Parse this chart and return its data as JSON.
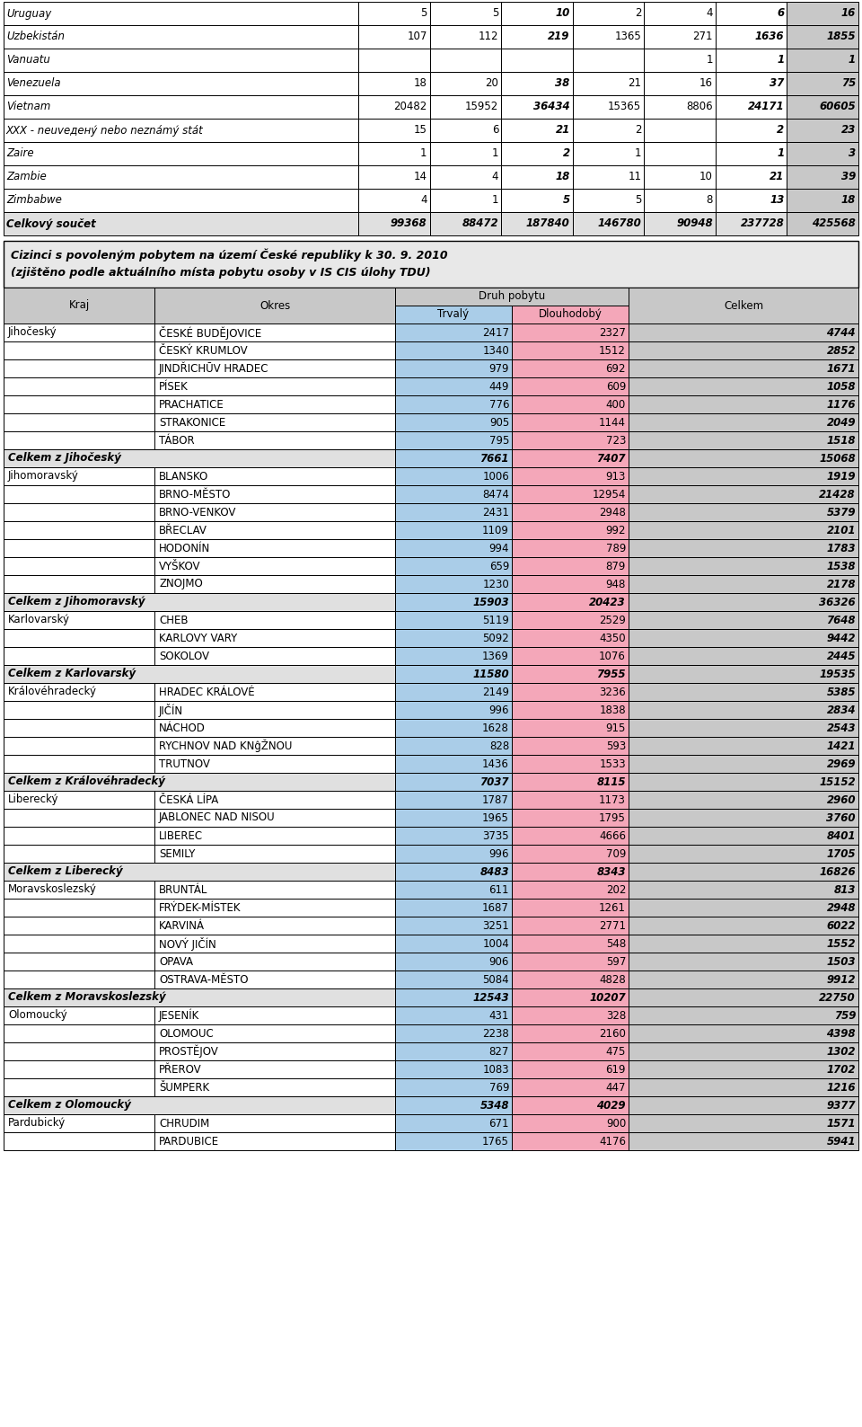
{
  "top_rows": [
    {
      "label": "Uruguay",
      "c1": "5",
      "c2": "5",
      "c3": "10",
      "c4": "2",
      "c5": "4",
      "c6": "6",
      "c7": "16"
    },
    {
      "label": "Uzbekistán",
      "c1": "107",
      "c2": "112",
      "c3": "219",
      "c4": "1365",
      "c5": "271",
      "c6": "1636",
      "c7": "1855"
    },
    {
      "label": "Vanuatu",
      "c1": "",
      "c2": "",
      "c3": "",
      "c4": "",
      "c5": "1",
      "c6": "1",
      "c7": "1"
    },
    {
      "label": "Venezuela",
      "c1": "18",
      "c2": "20",
      "c3": "38",
      "c4": "21",
      "c5": "16",
      "c6": "37",
      "c7": "75"
    },
    {
      "label": "Vietnam",
      "c1": "20482",
      "c2": "15952",
      "c3": "36434",
      "c4": "15365",
      "c5": "8806",
      "c6": "24171",
      "c7": "60605"
    },
    {
      "label": "XXX - neuveденý nebo neznámý stát",
      "c1": "15",
      "c2": "6",
      "c3": "21",
      "c4": "2",
      "c5": "",
      "c6": "2",
      "c7": "23"
    },
    {
      "label": "Zaire",
      "c1": "1",
      "c2": "1",
      "c3": "2",
      "c4": "1",
      "c5": "",
      "c6": "1",
      "c7": "3"
    },
    {
      "label": "Zambie",
      "c1": "14",
      "c2": "4",
      "c3": "18",
      "c4": "11",
      "c5": "10",
      "c6": "21",
      "c7": "39"
    },
    {
      "label": "Zimbabwe",
      "c1": "4",
      "c2": "1",
      "c3": "5",
      "c4": "5",
      "c5": "8",
      "c6": "13",
      "c7": "18"
    }
  ],
  "total_row": {
    "label": "Celkový součet",
    "c1": "99368",
    "c2": "88472",
    "c3": "187840",
    "c4": "146780",
    "c5": "90948",
    "c6": "237728",
    "c7": "425568"
  },
  "subtitle1": "Cizinci s povoleným pobytem na území České republiky k 30. 9. 2010",
  "subtitle2": "(zjištěno podle aktuálního místa pobytu osoby v IS CIS úlohy TDU)",
  "table_rows": [
    {
      "kraj": "Jihočeský",
      "okres": "ČESKÉ BUDĚJOVICE",
      "trvaly": "2417",
      "dlouhodoby": "2327",
      "celkem": "4744",
      "is_total": false
    },
    {
      "kraj": "",
      "okres": "ČESKÝ KRUMLOV",
      "trvaly": "1340",
      "dlouhodoby": "1512",
      "celkem": "2852",
      "is_total": false
    },
    {
      "kraj": "",
      "okres": "JINDŘICHŪV HRADEC",
      "trvaly": "979",
      "dlouhodoby": "692",
      "celkem": "1671",
      "is_total": false
    },
    {
      "kraj": "",
      "okres": "PÍSEK",
      "trvaly": "449",
      "dlouhodoby": "609",
      "celkem": "1058",
      "is_total": false
    },
    {
      "kraj": "",
      "okres": "PRACHATICE",
      "trvaly": "776",
      "dlouhodoby": "400",
      "celkem": "1176",
      "is_total": false
    },
    {
      "kraj": "",
      "okres": "STRAKONICE",
      "trvaly": "905",
      "dlouhodoby": "1144",
      "celkem": "2049",
      "is_total": false
    },
    {
      "kraj": "",
      "okres": "TÁBOR",
      "trvaly": "795",
      "dlouhodoby": "723",
      "celkem": "1518",
      "is_total": false
    },
    {
      "kraj": "Celkem z Jihočeský",
      "okres": "",
      "trvaly": "7661",
      "dlouhodoby": "7407",
      "celkem": "15068",
      "is_total": true
    },
    {
      "kraj": "Jihomoravský",
      "okres": "BLANSKO",
      "trvaly": "1006",
      "dlouhodoby": "913",
      "celkem": "1919",
      "is_total": false
    },
    {
      "kraj": "",
      "okres": "BRNO-MĚSTO",
      "trvaly": "8474",
      "dlouhodoby": "12954",
      "celkem": "21428",
      "is_total": false
    },
    {
      "kraj": "",
      "okres": "BRNO-VENKOV",
      "trvaly": "2431",
      "dlouhodoby": "2948",
      "celkem": "5379",
      "is_total": false
    },
    {
      "kraj": "",
      "okres": "BŘECLAV",
      "trvaly": "1109",
      "dlouhodoby": "992",
      "celkem": "2101",
      "is_total": false
    },
    {
      "kraj": "",
      "okres": "HODONÍN",
      "trvaly": "994",
      "dlouhodoby": "789",
      "celkem": "1783",
      "is_total": false
    },
    {
      "kraj": "",
      "okres": "VYŠKOV",
      "trvaly": "659",
      "dlouhodoby": "879",
      "celkem": "1538",
      "is_total": false
    },
    {
      "kraj": "",
      "okres": "ZNOJMO",
      "trvaly": "1230",
      "dlouhodoby": "948",
      "celkem": "2178",
      "is_total": false
    },
    {
      "kraj": "Celkem z Jihomoravský",
      "okres": "",
      "trvaly": "15903",
      "dlouhodoby": "20423",
      "celkem": "36326",
      "is_total": true
    },
    {
      "kraj": "Karlovarský",
      "okres": "CHEB",
      "trvaly": "5119",
      "dlouhodoby": "2529",
      "celkem": "7648",
      "is_total": false
    },
    {
      "kraj": "",
      "okres": "KARLOVY VARY",
      "trvaly": "5092",
      "dlouhodoby": "4350",
      "celkem": "9442",
      "is_total": false
    },
    {
      "kraj": "",
      "okres": "SOKOLOV",
      "trvaly": "1369",
      "dlouhodoby": "1076",
      "celkem": "2445",
      "is_total": false
    },
    {
      "kraj": "Celkem z Karlovarský",
      "okres": "",
      "trvaly": "11580",
      "dlouhodoby": "7955",
      "celkem": "19535",
      "is_total": true
    },
    {
      "kraj": "Královéhradecký",
      "okres": "HRADEC KRÁLOVÉ",
      "trvaly": "2149",
      "dlouhodoby": "3236",
      "celkem": "5385",
      "is_total": false
    },
    {
      "kraj": "",
      "okres": "JIČÍN",
      "trvaly": "996",
      "dlouhodoby": "1838",
      "celkem": "2834",
      "is_total": false
    },
    {
      "kraj": "",
      "okres": "NÁCHOD",
      "trvaly": "1628",
      "dlouhodoby": "915",
      "celkem": "2543",
      "is_total": false
    },
    {
      "kraj": "",
      "okres": "RYCHNOV NAD KNĝŽNOU",
      "trvaly": "828",
      "dlouhodoby": "593",
      "celkem": "1421",
      "is_total": false
    },
    {
      "kraj": "",
      "okres": "TRUTNOV",
      "trvaly": "1436",
      "dlouhodoby": "1533",
      "celkem": "2969",
      "is_total": false
    },
    {
      "kraj": "Celkem z Královéhradecký",
      "okres": "",
      "trvaly": "7037",
      "dlouhodoby": "8115",
      "celkem": "15152",
      "is_total": true
    },
    {
      "kraj": "Liberecký",
      "okres": "ČESKÁ LÍPA",
      "trvaly": "1787",
      "dlouhodoby": "1173",
      "celkem": "2960",
      "is_total": false
    },
    {
      "kraj": "",
      "okres": "JABLONEC NAD NISOU",
      "trvaly": "1965",
      "dlouhodoby": "1795",
      "celkem": "3760",
      "is_total": false
    },
    {
      "kraj": "",
      "okres": "LIBEREC",
      "trvaly": "3735",
      "dlouhodoby": "4666",
      "celkem": "8401",
      "is_total": false
    },
    {
      "kraj": "",
      "okres": "SEMILY",
      "trvaly": "996",
      "dlouhodoby": "709",
      "celkem": "1705",
      "is_total": false
    },
    {
      "kraj": "Celkem z Liberecký",
      "okres": "",
      "trvaly": "8483",
      "dlouhodoby": "8343",
      "celkem": "16826",
      "is_total": true
    },
    {
      "kraj": "Moravskoslezský",
      "okres": "BRUNTÁL",
      "trvaly": "611",
      "dlouhodoby": "202",
      "celkem": "813",
      "is_total": false
    },
    {
      "kraj": "",
      "okres": "FRÝDEK-MÍSTEK",
      "trvaly": "1687",
      "dlouhodoby": "1261",
      "celkem": "2948",
      "is_total": false
    },
    {
      "kraj": "",
      "okres": "KARVINÁ",
      "trvaly": "3251",
      "dlouhodoby": "2771",
      "celkem": "6022",
      "is_total": false
    },
    {
      "kraj": "",
      "okres": "NOVÝ JIČÍN",
      "trvaly": "1004",
      "dlouhodoby": "548",
      "celkem": "1552",
      "is_total": false
    },
    {
      "kraj": "",
      "okres": "OPAVA",
      "trvaly": "906",
      "dlouhodoby": "597",
      "celkem": "1503",
      "is_total": false
    },
    {
      "kraj": "",
      "okres": "OSTRAVA-MĚSTO",
      "trvaly": "5084",
      "dlouhodoby": "4828",
      "celkem": "9912",
      "is_total": false
    },
    {
      "kraj": "Celkem z Moravskoslezský",
      "okres": "",
      "trvaly": "12543",
      "dlouhodoby": "10207",
      "celkem": "22750",
      "is_total": true
    },
    {
      "kraj": "Olomoucký",
      "okres": "JESENÍK",
      "trvaly": "431",
      "dlouhodoby": "328",
      "celkem": "759",
      "is_total": false
    },
    {
      "kraj": "",
      "okres": "OLOMOUC",
      "trvaly": "2238",
      "dlouhodoby": "2160",
      "celkem": "4398",
      "is_total": false
    },
    {
      "kraj": "",
      "okres": "PROSTĚJOV",
      "trvaly": "827",
      "dlouhodoby": "475",
      "celkem": "1302",
      "is_total": false
    },
    {
      "kraj": "",
      "okres": "PŘEROV",
      "trvaly": "1083",
      "dlouhodoby": "619",
      "celkem": "1702",
      "is_total": false
    },
    {
      "kraj": "",
      "okres": "ŠUMPERK",
      "trvaly": "769",
      "dlouhodoby": "447",
      "celkem": "1216",
      "is_total": false
    },
    {
      "kraj": "Celkem z Olomoucký",
      "okres": "",
      "trvaly": "5348",
      "dlouhodoby": "4029",
      "celkem": "9377",
      "is_total": true
    },
    {
      "kraj": "Pardubický",
      "okres": "CHRUDIM",
      "trvaly": "671",
      "dlouhodoby": "900",
      "celkem": "1571",
      "is_total": false
    },
    {
      "kraj": "",
      "okres": "PARDUBICE",
      "trvaly": "1765",
      "dlouhodoby": "4176",
      "celkem": "5941",
      "is_total": false
    }
  ],
  "color_blue": "#aacde8",
  "color_pink": "#f4a7b9",
  "color_gray": "#c8c8c8",
  "color_white": "#ffffff",
  "color_light_gray": "#e0e0e0",
  "color_subtitle_bg": "#e8e8e8"
}
